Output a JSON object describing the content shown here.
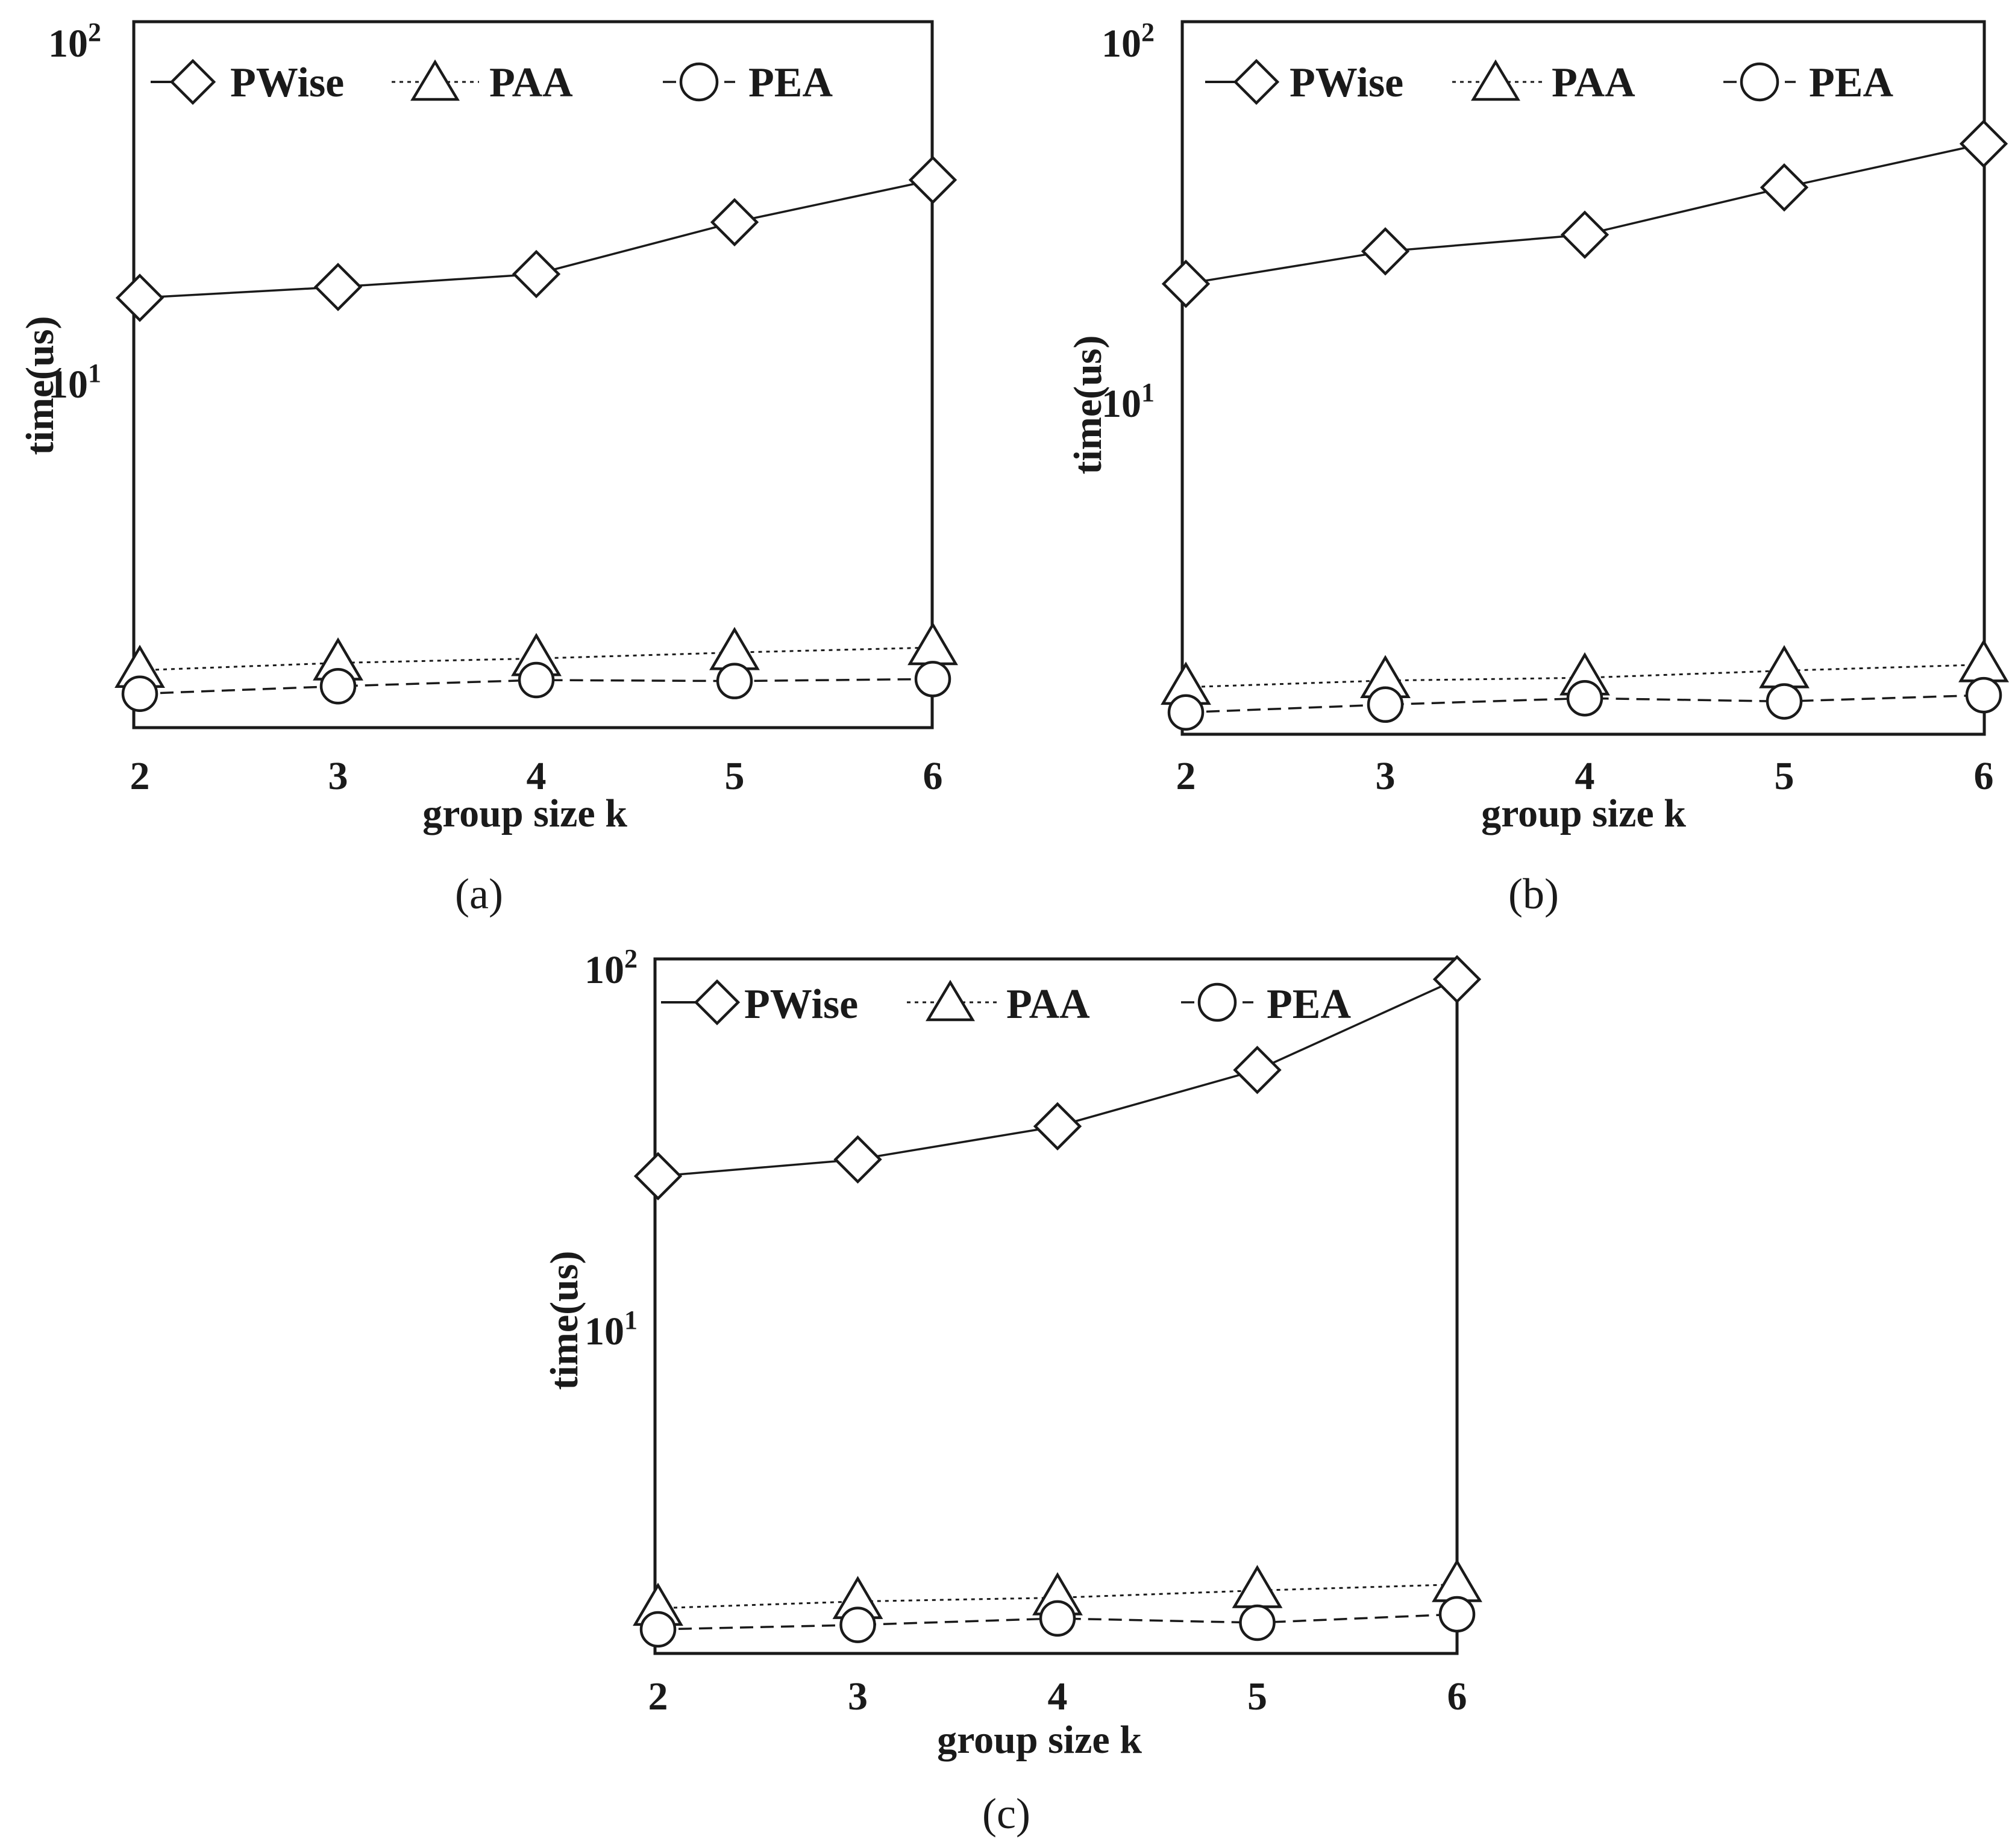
{
  "figure": {
    "captions": [
      "(a)",
      "(b)",
      "(c)"
    ]
  },
  "chart_data": [
    {
      "type": "line",
      "panel": "(a)",
      "xlabel": "group size k",
      "ylabel": "time(us)",
      "yscale": "log",
      "x": [
        2,
        3,
        4,
        5,
        6
      ],
      "x_ticks": [
        "2",
        "3",
        "4",
        "5",
        "6"
      ],
      "y_ticks": [
        {
          "value": 10,
          "base": "10",
          "exp": "1"
        },
        {
          "value": 100,
          "base": "10",
          "exp": "2"
        }
      ],
      "ylim": [
        1.2,
        100
      ],
      "grid": false,
      "legend": "top",
      "series": [
        {
          "name": "PWise",
          "marker": "diamond",
          "line": "solid",
          "values": [
            18.8,
            20.2,
            22.0,
            31.0,
            41.0
          ]
        },
        {
          "name": "PAA",
          "marker": "triangle",
          "line": "dotted",
          "values": [
            1.6,
            1.68,
            1.73,
            1.8,
            1.86
          ]
        },
        {
          "name": "PEA",
          "marker": "circle",
          "line": "dashed",
          "values": [
            1.37,
            1.44,
            1.5,
            1.49,
            1.51
          ]
        }
      ]
    },
    {
      "type": "line",
      "panel": "(b)",
      "xlabel": "group size k",
      "ylabel": "time(us)",
      "yscale": "log",
      "x": [
        2,
        3,
        4,
        5,
        6
      ],
      "x_ticks": [
        "2",
        "3",
        "4",
        "5",
        "6"
      ],
      "y_ticks": [
        {
          "value": 10,
          "base": "10",
          "exp": "1"
        },
        {
          "value": 100,
          "base": "10",
          "exp": "2"
        }
      ],
      "ylim": [
        1.2,
        100
      ],
      "grid": false,
      "legend": "top",
      "series": [
        {
          "name": "PWise",
          "marker": "diamond",
          "line": "solid",
          "values": [
            21.5,
            26.5,
            29.5,
            40.0,
            53.0
          ]
        },
        {
          "name": "PAA",
          "marker": "triangle",
          "line": "dotted",
          "values": [
            1.6,
            1.67,
            1.7,
            1.78,
            1.85
          ]
        },
        {
          "name": "PEA",
          "marker": "circle",
          "line": "dashed",
          "values": [
            1.36,
            1.43,
            1.49,
            1.46,
            1.52
          ]
        }
      ]
    },
    {
      "type": "line",
      "panel": "(c)",
      "xlabel": "group size k",
      "ylabel": "time(us)",
      "yscale": "log",
      "x": [
        2,
        3,
        4,
        5,
        6
      ],
      "x_ticks": [
        "2",
        "3",
        "4",
        "5",
        "6"
      ],
      "y_ticks": [
        {
          "value": 10,
          "base": "10",
          "exp": "1"
        },
        {
          "value": 100,
          "base": "10",
          "exp": "2"
        }
      ],
      "ylim": [
        1.2,
        100
      ],
      "grid": false,
      "legend": "top",
      "series": [
        {
          "name": "PWise",
          "marker": "diamond",
          "line": "solid",
          "values": [
            26.0,
            29.0,
            36.0,
            52.0,
            94.0
          ]
        },
        {
          "name": "PAA",
          "marker": "triangle",
          "line": "dotted",
          "values": [
            1.55,
            1.62,
            1.66,
            1.74,
            1.81
          ]
        },
        {
          "name": "PEA",
          "marker": "circle",
          "line": "dashed",
          "values": [
            1.35,
            1.39,
            1.45,
            1.41,
            1.49
          ]
        }
      ]
    }
  ]
}
